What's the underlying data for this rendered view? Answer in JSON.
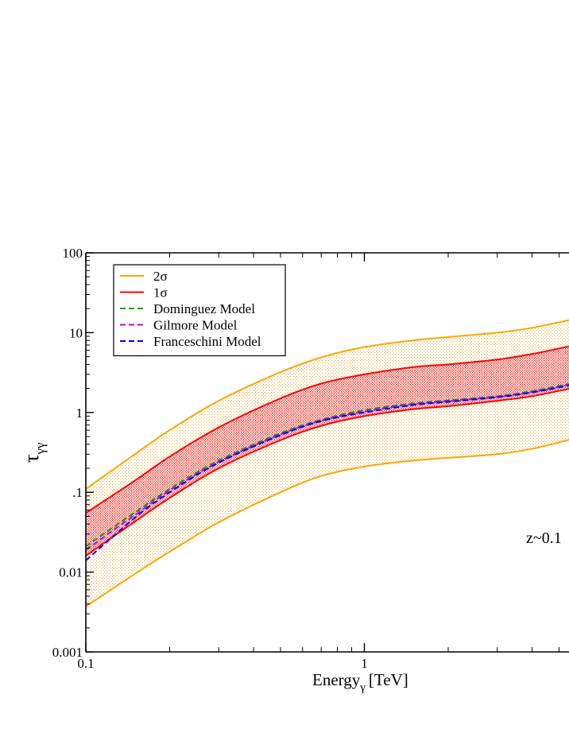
{
  "chart_data": {
    "type": "line",
    "title": "",
    "xlabel_main": "Energy",
    "xlabel_sub": "γ",
    "xlabel_unit": "[TeV]",
    "ylabel_main": "τ",
    "ylabel_sub": "γγ",
    "x_scale": "log",
    "y_scale": "log",
    "xlim": [
      0.1,
      5.5
    ],
    "ylim": [
      0.001,
      100
    ],
    "x_ticks": [
      {
        "value": 0.1,
        "label": "0.1"
      },
      {
        "value": 1,
        "label": "1"
      }
    ],
    "y_ticks": [
      {
        "value": 100,
        "label": "100"
      },
      {
        "value": 10,
        "label": "10"
      },
      {
        "value": 1,
        "label": "1"
      },
      {
        "value": 0.1,
        "label": ".1"
      },
      {
        "value": 0.01,
        "label": "0.01"
      },
      {
        "value": 0.001,
        "label": "0.001"
      }
    ],
    "annotation": "z~0.1",
    "legend_position": "top-left",
    "grid": false,
    "bands": [
      {
        "name": "2σ",
        "color": "#ffa500",
        "x": [
          0.1,
          0.15,
          0.2,
          0.3,
          0.5,
          0.7,
          1.0,
          1.5,
          2.0,
          3.0,
          4.0,
          5.5
        ],
        "upper": [
          0.11,
          0.3,
          0.6,
          1.4,
          3.2,
          4.9,
          6.6,
          8.0,
          8.8,
          10.0,
          11.5,
          14.5
        ],
        "lower": [
          0.0037,
          0.0095,
          0.018,
          0.042,
          0.1,
          0.16,
          0.21,
          0.25,
          0.27,
          0.3,
          0.35,
          0.46
        ]
      },
      {
        "name": "1σ",
        "color": "#ff0000",
        "x": [
          0.1,
          0.15,
          0.2,
          0.3,
          0.5,
          0.7,
          1.0,
          1.5,
          2.0,
          3.0,
          4.0,
          5.5
        ],
        "upper": [
          0.055,
          0.14,
          0.28,
          0.65,
          1.5,
          2.3,
          3.0,
          3.7,
          4.0,
          4.6,
          5.4,
          6.8
        ],
        "lower": [
          0.016,
          0.043,
          0.085,
          0.2,
          0.45,
          0.68,
          0.9,
          1.1,
          1.2,
          1.4,
          1.6,
          2.0
        ]
      }
    ],
    "series": [
      {
        "name": "Dominguez Model",
        "color": "#00a000",
        "style": "dashed",
        "x": [
          0.1,
          0.15,
          0.2,
          0.3,
          0.5,
          0.7,
          1.0,
          1.5,
          2.0,
          3.0,
          4.0,
          5.5
        ],
        "values": [
          0.021,
          0.056,
          0.11,
          0.25,
          0.55,
          0.81,
          1.07,
          1.3,
          1.42,
          1.6,
          1.85,
          2.3
        ]
      },
      {
        "name": "Gilmore Model",
        "color": "#c000e0",
        "style": "dashed",
        "x": [
          0.1,
          0.15,
          0.2,
          0.3,
          0.5,
          0.7,
          1.0,
          1.5,
          2.0,
          3.0,
          4.0,
          5.5
        ],
        "values": [
          0.019,
          0.052,
          0.105,
          0.24,
          0.53,
          0.79,
          1.03,
          1.27,
          1.39,
          1.57,
          1.8,
          2.25
        ]
      },
      {
        "name": "Franceschini Model",
        "color": "#0000ff",
        "style": "dashed",
        "x": [
          0.1,
          0.15,
          0.2,
          0.3,
          0.5,
          0.7,
          1.0,
          1.5,
          2.0,
          3.0,
          4.0,
          5.5
        ],
        "values": [
          0.014,
          0.048,
          0.1,
          0.235,
          0.52,
          0.78,
          1.0,
          1.24,
          1.36,
          1.55,
          1.78,
          2.2
        ]
      }
    ]
  }
}
